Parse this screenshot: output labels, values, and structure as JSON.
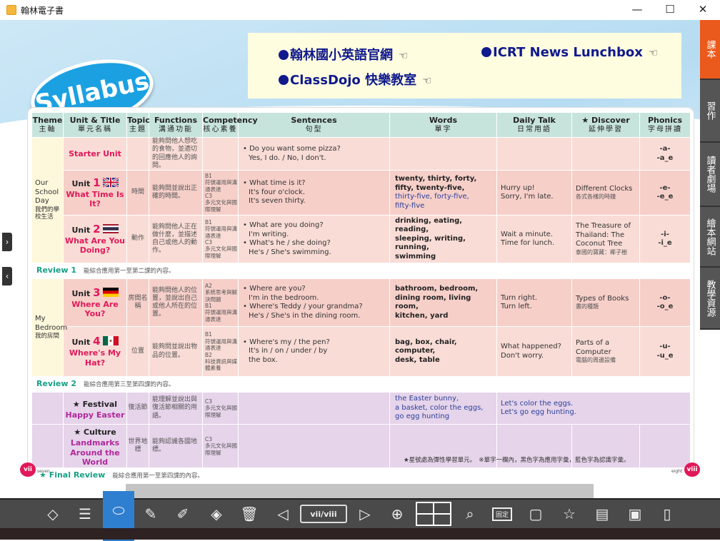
{
  "window": {
    "title": "翰林電子書",
    "min": "—",
    "max": "☐",
    "close": "✕"
  },
  "logo": "Syllabus",
  "links": [
    {
      "label": "翰林國小英語官網"
    },
    {
      "label": "ICRT News Lunchbox"
    },
    {
      "label": "ClassDojo 快樂教室"
    }
  ],
  "link_icon": "pointing-hand-icon",
  "hand": "☜",
  "header": [
    {
      "en": "Theme",
      "zh": "主軸"
    },
    {
      "en": "Unit & Title",
      "zh": "單元名稱"
    },
    {
      "en": "Topic",
      "zh": "主題"
    },
    {
      "en": "Functions",
      "zh": "溝通功能"
    },
    {
      "en": "Competency",
      "zh": "核心素養"
    },
    {
      "en": "Sentences",
      "zh": "句型"
    },
    {
      "en": "Words",
      "zh": "單字"
    },
    {
      "en": "Daily Talk",
      "zh": "日常用語"
    },
    {
      "en": "★ Discover",
      "zh": "延伸學習"
    },
    {
      "en": "Phonics",
      "zh": "字母拼讀"
    }
  ],
  "themes": [
    {
      "en": "Our School Day",
      "zh": "我們的學校生活"
    },
    {
      "en": "My Bedroom",
      "zh": "我的房間"
    }
  ],
  "rows": [
    {
      "unit": "",
      "num": "",
      "title": "Starter Unit",
      "flag": "",
      "topic": "",
      "func": "能夠問他人想吃的食物，並適切的回應他人的詢問。",
      "comp": [],
      "sent": [
        "• Do you want some pizza?",
        "Yes, I do. / No, I don't."
      ],
      "words": [],
      "words_blue": [],
      "daily": [],
      "disc": "",
      "disc_zh": "",
      "phon": [
        "-a-",
        "-a_e"
      ]
    },
    {
      "unit": "Unit",
      "num": "1",
      "title": "What Time Is It?",
      "flag": "uk",
      "topic": "時間",
      "func": "能夠問並說出正確的時間。",
      "comp": [
        "B1",
        "符號運用與溝通表達",
        "C3",
        "多元文化與國際理解"
      ],
      "sent": [
        "• What time is it?",
        "It's four o'clock.",
        "It's seven thirty."
      ],
      "words": [
        "twenty, thirty, forty,",
        "fifty, twenty-five,"
      ],
      "words_blue": [
        "thirty-five, forty-five,",
        "fifty-five"
      ],
      "daily": [
        "Hurry up!",
        "Sorry, I'm late."
      ],
      "disc": "Different Clocks",
      "disc_zh": "各式各樣的時鐘",
      "phon": [
        "-e-",
        "-e_e"
      ]
    },
    {
      "unit": "Unit",
      "num": "2",
      "title": "What Are You Doing?",
      "flag": "th",
      "topic": "動作",
      "func": "能夠問他人正在做什麼，並描述自己或他人的動作。",
      "comp": [
        "B1",
        "符號運用與溝通表達",
        "C3",
        "多元文化與國際理解"
      ],
      "sent": [
        "• What are you doing?",
        "I'm writing.",
        "• What's he / she doing?",
        "He's / She's swimming."
      ],
      "words": [
        "drinking, eating, reading,",
        "sleeping, writing, running,",
        "swimming"
      ],
      "words_blue": [],
      "daily": [
        "Wait a minute.",
        "Time for lunch."
      ],
      "disc": "The Treasure of Thailand: The Coconut Tree",
      "disc_zh": "泰國的寶藏：椰子樹",
      "phon": [
        "-i-",
        "-i_e"
      ]
    },
    {
      "unit": "Unit",
      "num": "3",
      "title": "Where Are You?",
      "flag": "de",
      "topic": "房間名稱",
      "func": "能夠問他人的位置，並說出自己或他人所在的位置。",
      "comp": [
        "A2",
        "系統思考與解決問題",
        "B1",
        "符號運用與溝通表達"
      ],
      "sent": [
        "• Where are you?",
        "I'm in the bedroom.",
        "• Where's Teddy / your grandma?",
        "He's / She's in the dining room."
      ],
      "words": [
        "bathroom, bedroom,",
        "dining room, living room,",
        "kitchen, yard"
      ],
      "words_blue": [],
      "daily": [
        "Turn right.",
        "Turn left."
      ],
      "disc": "Types of Books",
      "disc_zh": "書的種類",
      "phon": [
        "-o-",
        "-o_e"
      ]
    },
    {
      "unit": "Unit",
      "num": "4",
      "title": "Where's My Hat?",
      "flag": "mx",
      "topic": "位置",
      "func": "能夠問並說出物品的位置。",
      "comp": [
        "B1",
        "符號運用與溝通表達",
        "B2",
        "科技資訊與媒體素養"
      ],
      "sent": [
        "• Where's my / the pen?",
        "It's in / on / under / by",
        "the box."
      ],
      "words": [
        "bag, box, chair, computer,",
        "desk, table"
      ],
      "words_blue": [],
      "daily": [
        "What happened?",
        "Don't worry."
      ],
      "disc": "Parts of a Computer",
      "disc_zh": "電腦的周邊設備",
      "phon": [
        "-u-",
        "-u_e"
      ]
    },
    {
      "unit": "★ Festival",
      "num": "",
      "title": "Happy Easter",
      "flag": "",
      "topic": "復活節",
      "func": "能理解並說出與復活節相關的用語。",
      "comp": [
        "C3",
        "多元文化與國際理解"
      ],
      "sent": [],
      "words": [],
      "words_blue": [
        "the Easter bunny,",
        "a basket, color the eggs,",
        "go egg hunting"
      ],
      "daily_blue": [
        "Let's color the eggs.",
        "Let's go egg hunting."
      ],
      "daily": [],
      "disc": "",
      "disc_zh": "",
      "phon": []
    },
    {
      "unit": "★ Culture",
      "num": "",
      "title": "Landmarks Around the World",
      "flag": "",
      "topic": "世界地標",
      "func": "能夠認識各國地標。",
      "comp": [
        "C3",
        "多元文化與國際理解"
      ],
      "sent": [],
      "words": [],
      "words_blue": [],
      "daily": [],
      "disc": "",
      "disc_zh": "",
      "phon": []
    }
  ],
  "reviews": [
    {
      "label": "Review 1",
      "desc": "能綜合應用第一至第二課的內容。"
    },
    {
      "label": "Review 2",
      "desc": "能綜合應用第三至第四課的內容。"
    },
    {
      "label": "★ Final Review",
      "desc": "能綜合應用第一至第四課的內容。"
    }
  ],
  "legend": "★星號處為彈性學習單元。　※單字一欄內，黑色字為應用字彙，藍色字為認識字彙。",
  "pages": {
    "left": "vii",
    "left_word": "seven",
    "right": "viii",
    "right_word": "eight"
  },
  "right_tabs": [
    {
      "label": "課本",
      "active": true
    },
    {
      "label": "習作"
    },
    {
      "label": "讀者劇場"
    },
    {
      "label": "繪本網站"
    },
    {
      "label": "教學資源"
    }
  ],
  "toolbar": [
    {
      "label": "儲存",
      "icon": "◇",
      "name": "save"
    },
    {
      "label": "回目次",
      "icon": "☰",
      "name": "toc"
    },
    {
      "label": "滑鼠",
      "icon": "⬭",
      "name": "mouse",
      "active": true
    },
    {
      "label": "畫筆",
      "icon": "✎",
      "name": "pen"
    },
    {
      "label": "螢光筆",
      "icon": "✐",
      "name": "highlighter"
    },
    {
      "label": "橡皮擦",
      "icon": "◈",
      "name": "eraser"
    },
    {
      "label": "全刪",
      "icon": "🗑",
      "name": "delete-all"
    },
    {
      "label": "上一頁",
      "icon": "◁",
      "name": "prev-page"
    },
    {
      "label": "頁碼工具",
      "icon": "",
      "name": "page-tool",
      "page": "vii/viii"
    },
    {
      "label": "下一頁",
      "icon": "▷",
      "name": "next-page"
    },
    {
      "label": "原尺寸",
      "icon": "⊕",
      "name": "original-size"
    },
    {
      "label": "四格放大",
      "icon": "⊞",
      "name": "four-grid-zoom"
    },
    {
      "label": "局部放大",
      "icon": "⌕",
      "name": "partial-zoom"
    },
    {
      "label": "顯示比例",
      "icon": "▭",
      "name": "display-ratio",
      "badge": "固定"
    },
    {
      "label": "白板",
      "icon": "▢",
      "name": "whiteboard"
    },
    {
      "label": "選號器",
      "icon": "☆",
      "name": "number-picker"
    },
    {
      "label": "工具箱",
      "icon": "▤",
      "name": "toolbox"
    },
    {
      "label": "自訂",
      "icon": "▣",
      "name": "custom"
    },
    {
      "label": "頁籤",
      "icon": "▯",
      "name": "bookmark"
    }
  ],
  "colors": {
    "accent_red": "#e0195a",
    "review_green": "#17a086",
    "link_blue": "#101a8c",
    "tab_orange": "#ea5a1c",
    "toolbar_active": "#2f7fd0"
  }
}
